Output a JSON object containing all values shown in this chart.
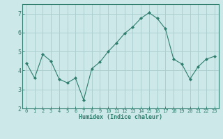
{
  "x": [
    0,
    1,
    2,
    3,
    4,
    5,
    6,
    7,
    8,
    9,
    10,
    11,
    12,
    13,
    14,
    15,
    16,
    17,
    18,
    19,
    20,
    21,
    22,
    23
  ],
  "y": [
    4.4,
    3.6,
    4.85,
    4.5,
    3.55,
    3.35,
    3.6,
    2.45,
    4.1,
    4.45,
    5.0,
    5.45,
    5.95,
    6.3,
    6.75,
    7.05,
    6.75,
    6.2,
    4.6,
    4.35,
    3.55,
    4.2,
    4.6,
    4.75
  ],
  "line_color": "#2e7d6e",
  "marker": "D",
  "marker_size": 2.0,
  "bg_color": "#cce8e8",
  "grid_color": "#aacccc",
  "xlabel": "Humidex (Indice chaleur)",
  "ylim": [
    2,
    7.5
  ],
  "xlim": [
    -0.5,
    23.5
  ],
  "yticks": [
    2,
    3,
    4,
    5,
    6,
    7
  ],
  "xticks": [
    0,
    1,
    2,
    3,
    4,
    5,
    6,
    7,
    8,
    9,
    10,
    11,
    12,
    13,
    14,
    15,
    16,
    17,
    18,
    19,
    20,
    21,
    22,
    23
  ],
  "tick_color": "#2e7d6e",
  "label_color": "#2e7d6e",
  "spine_color": "#2e7d6e",
  "tick_fontsize": 5.0,
  "xlabel_fontsize": 6.0
}
